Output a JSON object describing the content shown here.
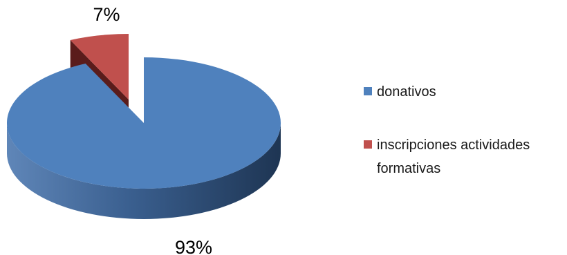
{
  "chart_data": {
    "type": "pie",
    "style": "3d-exploded",
    "categories": [
      "donativos",
      "inscripciones actividades formativas"
    ],
    "values": [
      93,
      7
    ],
    "data_labels": [
      "93%",
      "7%"
    ],
    "colors": [
      "#4F81BD",
      "#C0504D"
    ],
    "legend": {
      "placement": "right",
      "entries": [
        {
          "lines": [
            "donativos"
          ]
        },
        {
          "lines": [
            "inscripciones actividades",
            "formativas"
          ]
        }
      ]
    }
  }
}
